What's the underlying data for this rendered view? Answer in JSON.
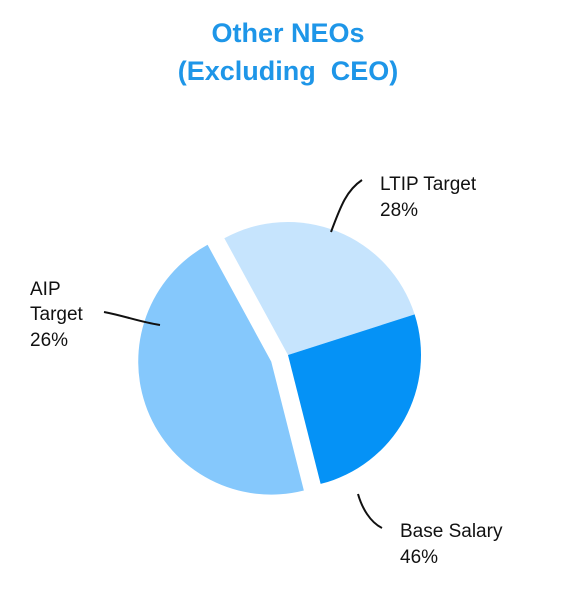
{
  "chart_data": {
    "type": "pie",
    "title_lines": [
      "Other NEOs",
      "(Excluding  CEO)"
    ],
    "slices": [
      {
        "name": "LTIP Target",
        "value": 28,
        "value_label": "28%",
        "color": "#c6e4fd",
        "label_lines": [
          "LTIP Target"
        ]
      },
      {
        "name": "Base Salary",
        "value": 46,
        "value_label": "46%",
        "color": "#85c8fc",
        "label_lines": [
          "Base Salary"
        ],
        "exploded": true
      },
      {
        "name": "AIP Target",
        "value": 26,
        "value_label": "26%",
        "color": "#0592f6",
        "label_lines": [
          "AIP",
          "Target"
        ]
      }
    ],
    "legend": "none",
    "label_style": "leader-lines"
  }
}
